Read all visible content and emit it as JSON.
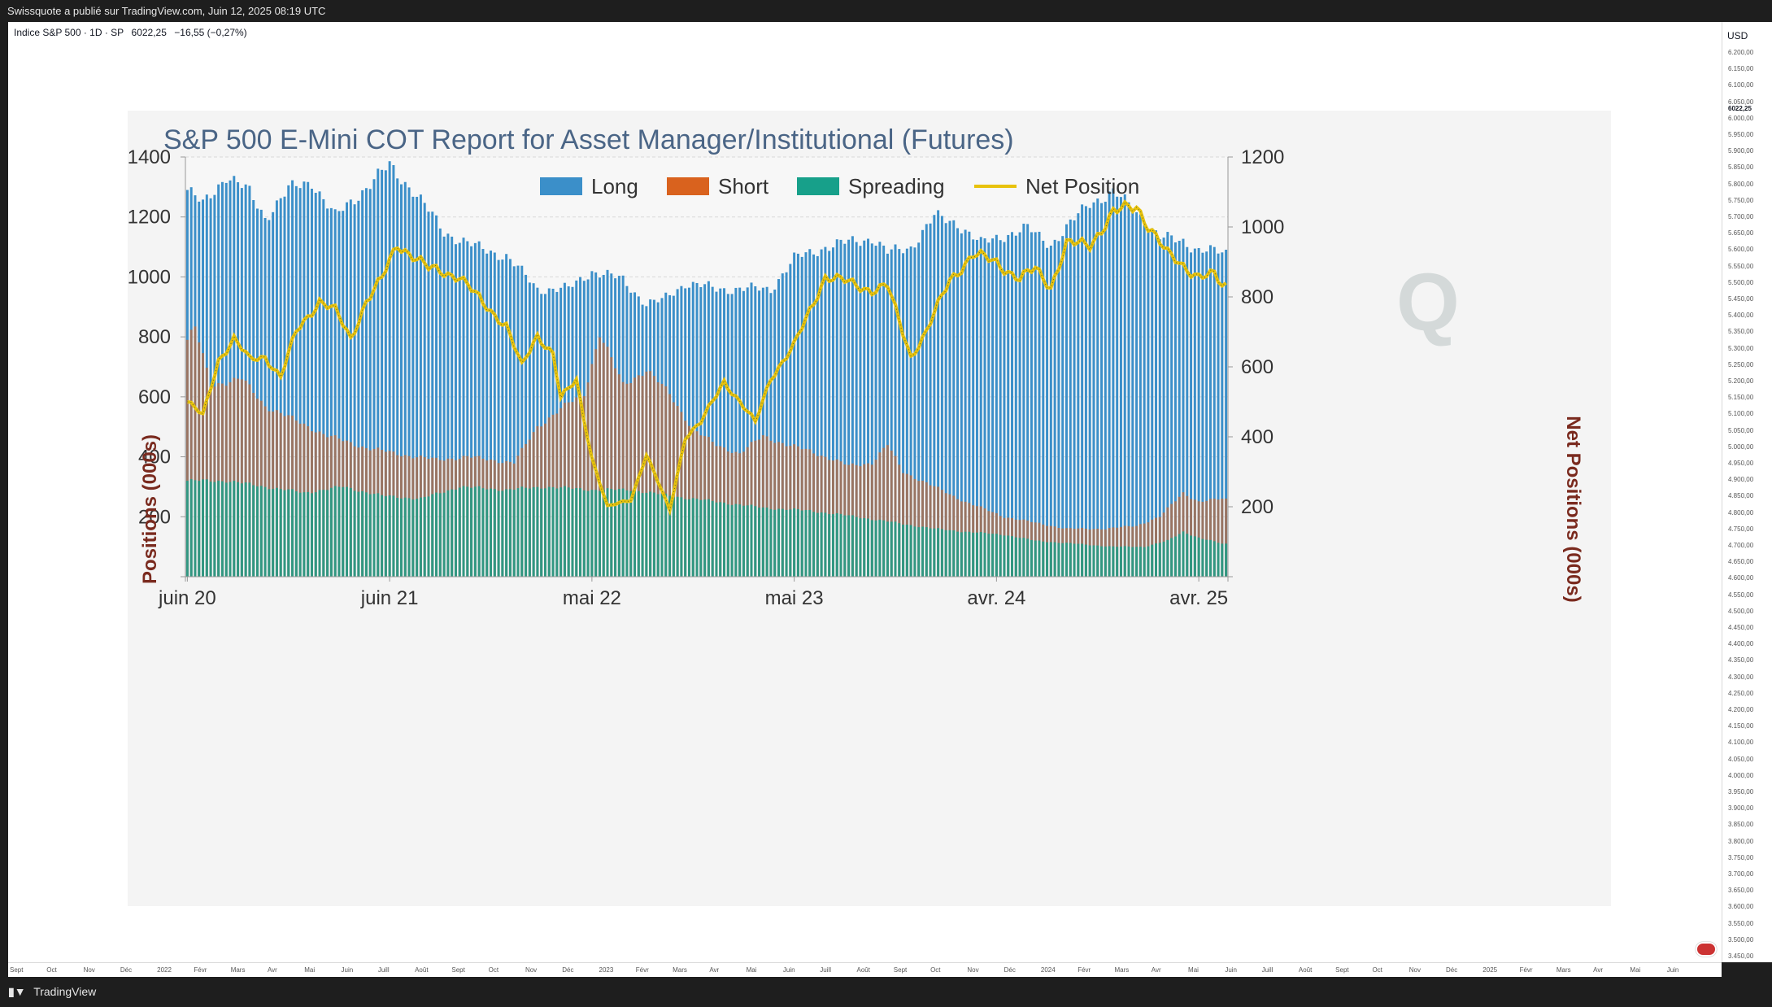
{
  "header": {
    "publisher_line": "Swissquote a publié sur TradingView.com, Juin 12, 2025 08:19 UTC"
  },
  "symbol": {
    "name": "Indice S&P 500 · 1D · SP",
    "price": "6022,25",
    "change": "−16,55 (−0,27%)"
  },
  "price_axis": {
    "currency": "USD",
    "last_price": "6022,25",
    "ticks": [
      "6.200,00",
      "6.150,00",
      "6.100,00",
      "6.050,00",
      "6.000,00",
      "5.950,00",
      "5.900,00",
      "5.850,00",
      "5.800,00",
      "5.750,00",
      "5.700,00",
      "5.650,00",
      "5.600,00",
      "5.550,00",
      "5.500,00",
      "5.450,00",
      "5.400,00",
      "5.350,00",
      "5.300,00",
      "5.250,00",
      "5.200,00",
      "5.150,00",
      "5.100,00",
      "5.050,00",
      "5.000,00",
      "4.950,00",
      "4.900,00",
      "4.850,00",
      "4.800,00",
      "4.750,00",
      "4.700,00",
      "4.650,00",
      "4.600,00",
      "4.550,00",
      "4.500,00",
      "4.450,00",
      "4.400,00",
      "4.350,00",
      "4.300,00",
      "4.250,00",
      "4.200,00",
      "4.150,00",
      "4.100,00",
      "4.050,00",
      "4.000,00",
      "3.950,00",
      "3.900,00",
      "3.850,00",
      "3.800,00",
      "3.750,00",
      "3.700,00",
      "3.650,00",
      "3.600,00",
      "3.550,00",
      "3.500,00",
      "3.450,00"
    ]
  },
  "time_axis": {
    "ticks": [
      "Sept",
      "Oct",
      "Nov",
      "Déc",
      "2022",
      "Févr",
      "Mars",
      "Avr",
      "Mai",
      "Juin",
      "Juill",
      "Août",
      "Sept",
      "Oct",
      "Nov",
      "Déc",
      "2023",
      "Févr",
      "Mars",
      "Avr",
      "Mai",
      "Juin",
      "Juill",
      "Août",
      "Sept",
      "Oct",
      "Nov",
      "Déc",
      "2024",
      "Févr",
      "Mars",
      "Avr",
      "Mai",
      "Juin",
      "Juill",
      "Août",
      "Sept",
      "Oct",
      "Nov",
      "Déc",
      "2025",
      "Févr",
      "Mars",
      "Avr",
      "Mai",
      "Juin"
    ]
  },
  "footer": {
    "brand": "TradingView"
  },
  "colors": {
    "long": "#3b8fc9",
    "short": "#d9621e",
    "spreading": "#17a08a",
    "net": "#e8c20c"
  },
  "chart_data": {
    "type": "bar",
    "title": "S&P 500 E-Mini COT Report for Asset Manager/Institutional (Futures)",
    "ylabel": "Positions (000s)",
    "y2label": "Net Positions (000s)",
    "ylim": [
      0,
      1400
    ],
    "y2lim": [
      0,
      1200
    ],
    "yticks": [
      200,
      400,
      600,
      800,
      1000,
      1200,
      1400
    ],
    "y2ticks": [
      200,
      400,
      600,
      800,
      1000,
      1200
    ],
    "xticks": [
      "juin 20",
      "juin 21",
      "mai 22",
      "mai 23",
      "avr. 24",
      "avr. 25"
    ],
    "xtick_index": [
      0,
      52,
      104,
      156,
      208,
      260
    ],
    "legend_position": "top-center",
    "grid": true,
    "series": [
      {
        "name": "Long",
        "anchors": [
          [
            0,
            1290
          ],
          [
            4,
            1240
          ],
          [
            10,
            1340
          ],
          [
            16,
            1280
          ],
          [
            20,
            1200
          ],
          [
            26,
            1290
          ],
          [
            32,
            1320
          ],
          [
            38,
            1200
          ],
          [
            46,
            1300
          ],
          [
            52,
            1370
          ],
          [
            58,
            1290
          ],
          [
            66,
            1150
          ],
          [
            74,
            1100
          ],
          [
            82,
            1070
          ],
          [
            90,
            960
          ],
          [
            98,
            960
          ],
          [
            104,
            1020
          ],
          [
            112,
            990
          ],
          [
            118,
            910
          ],
          [
            122,
            920
          ],
          [
            128,
            980
          ],
          [
            136,
            960
          ],
          [
            144,
            960
          ],
          [
            150,
            960
          ],
          [
            156,
            1060
          ],
          [
            164,
            1100
          ],
          [
            172,
            1120
          ],
          [
            176,
            1130
          ],
          [
            180,
            1080
          ],
          [
            186,
            1100
          ],
          [
            192,
            1200
          ],
          [
            198,
            1180
          ],
          [
            204,
            1110
          ],
          [
            210,
            1140
          ],
          [
            216,
            1160
          ],
          [
            222,
            1110
          ],
          [
            226,
            1160
          ],
          [
            232,
            1250
          ],
          [
            238,
            1280
          ],
          [
            244,
            1220
          ],
          [
            250,
            1130
          ],
          [
            256,
            1120
          ],
          [
            260,
            1090
          ],
          [
            266,
            1080
          ]
        ]
      },
      {
        "name": "Short",
        "anchors": [
          [
            0,
            790
          ],
          [
            2,
            830
          ],
          [
            6,
            640
          ],
          [
            14,
            660
          ],
          [
            20,
            570
          ],
          [
            28,
            520
          ],
          [
            36,
            470
          ],
          [
            46,
            430
          ],
          [
            54,
            410
          ],
          [
            64,
            390
          ],
          [
            72,
            400
          ],
          [
            84,
            380
          ],
          [
            90,
            500
          ],
          [
            96,
            560
          ],
          [
            102,
            610
          ],
          [
            106,
            810
          ],
          [
            112,
            640
          ],
          [
            118,
            690
          ],
          [
            124,
            610
          ],
          [
            130,
            490
          ],
          [
            136,
            440
          ],
          [
            142,
            410
          ],
          [
            148,
            470
          ],
          [
            154,
            440
          ],
          [
            160,
            420
          ],
          [
            170,
            370
          ],
          [
            176,
            380
          ],
          [
            180,
            440
          ],
          [
            184,
            350
          ],
          [
            192,
            300
          ],
          [
            200,
            250
          ],
          [
            210,
            200
          ],
          [
            218,
            180
          ],
          [
            226,
            160
          ],
          [
            236,
            160
          ],
          [
            244,
            170
          ],
          [
            250,
            200
          ],
          [
            256,
            280
          ],
          [
            260,
            250
          ],
          [
            266,
            260
          ]
        ]
      },
      {
        "name": "Spreading",
        "anchors": [
          [
            0,
            320
          ],
          [
            10,
            320
          ],
          [
            20,
            300
          ],
          [
            30,
            280
          ],
          [
            40,
            300
          ],
          [
            50,
            270
          ],
          [
            60,
            260
          ],
          [
            70,
            300
          ],
          [
            82,
            290
          ],
          [
            92,
            300
          ],
          [
            104,
            290
          ],
          [
            114,
            290
          ],
          [
            124,
            270
          ],
          [
            136,
            250
          ],
          [
            148,
            230
          ],
          [
            160,
            220
          ],
          [
            172,
            200
          ],
          [
            182,
            180
          ],
          [
            192,
            160
          ],
          [
            200,
            150
          ],
          [
            210,
            140
          ],
          [
            218,
            120
          ],
          [
            228,
            110
          ],
          [
            238,
            100
          ],
          [
            246,
            100
          ],
          [
            252,
            120
          ],
          [
            256,
            150
          ],
          [
            260,
            130
          ],
          [
            266,
            110
          ]
        ]
      },
      {
        "name": "Net Position",
        "anchors": [
          [
            0,
            500
          ],
          [
            4,
            460
          ],
          [
            8,
            620
          ],
          [
            12,
            680
          ],
          [
            16,
            620
          ],
          [
            20,
            630
          ],
          [
            24,
            570
          ],
          [
            28,
            700
          ],
          [
            34,
            790
          ],
          [
            38,
            760
          ],
          [
            42,
            680
          ],
          [
            46,
            790
          ],
          [
            50,
            850
          ],
          [
            54,
            950
          ],
          [
            58,
            920
          ],
          [
            62,
            880
          ],
          [
            70,
            860
          ],
          [
            76,
            780
          ],
          [
            82,
            720
          ],
          [
            86,
            600
          ],
          [
            90,
            690
          ],
          [
            94,
            640
          ],
          [
            96,
            510
          ],
          [
            100,
            560
          ],
          [
            104,
            340
          ],
          [
            108,
            200
          ],
          [
            114,
            220
          ],
          [
            118,
            350
          ],
          [
            124,
            190
          ],
          [
            128,
            400
          ],
          [
            132,
            440
          ],
          [
            138,
            560
          ],
          [
            142,
            500
          ],
          [
            146,
            440
          ],
          [
            150,
            570
          ],
          [
            156,
            660
          ],
          [
            164,
            860
          ],
          [
            170,
            840
          ],
          [
            176,
            820
          ],
          [
            180,
            830
          ],
          [
            186,
            630
          ],
          [
            190,
            700
          ],
          [
            196,
            850
          ],
          [
            202,
            920
          ],
          [
            208,
            900
          ],
          [
            214,
            850
          ],
          [
            218,
            880
          ],
          [
            222,
            830
          ],
          [
            226,
            950
          ],
          [
            232,
            950
          ],
          [
            238,
            1040
          ],
          [
            244,
            1060
          ],
          [
            248,
            990
          ],
          [
            252,
            920
          ],
          [
            256,
            890
          ],
          [
            260,
            860
          ],
          [
            264,
            860
          ],
          [
            266,
            830
          ]
        ]
      }
    ]
  }
}
